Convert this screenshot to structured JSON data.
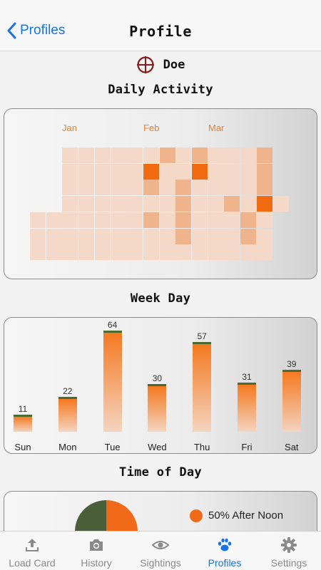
{
  "nav": {
    "back_label": "Profiles",
    "title": "Profile"
  },
  "animal": {
    "name": "Doe"
  },
  "daily": {
    "title": "Daily Activity",
    "months": [
      "Jan",
      "Feb",
      "Mar"
    ],
    "heat_rows": [
      [
        null,
        null,
        1,
        1,
        1,
        1,
        1,
        1,
        2,
        1,
        2,
        1,
        1,
        1,
        2
      ],
      [
        null,
        null,
        1,
        1,
        1,
        1,
        1,
        4,
        1,
        1,
        4,
        1,
        1,
        1,
        2
      ],
      [
        null,
        null,
        1,
        1,
        1,
        1,
        1,
        2,
        1,
        2,
        1,
        1,
        1,
        1,
        2
      ],
      [
        null,
        null,
        1,
        1,
        1,
        1,
        1,
        1,
        1,
        2,
        1,
        1,
        2,
        1,
        4,
        1
      ],
      [
        1,
        1,
        1,
        1,
        1,
        1,
        1,
        2,
        1,
        2,
        1,
        1,
        1,
        2,
        1,
        null
      ],
      [
        1,
        1,
        1,
        1,
        1,
        1,
        1,
        1,
        1,
        2,
        1,
        1,
        1,
        2,
        1,
        null
      ],
      [
        1,
        1,
        1,
        1,
        1,
        1,
        1,
        1,
        1,
        1,
        1,
        1,
        1,
        1,
        1,
        null
      ]
    ]
  },
  "weekday": {
    "title": "Week Day",
    "chart_data": {
      "type": "bar",
      "categories": [
        "Sun",
        "Mon",
        "Tue",
        "Wed",
        "Thu",
        "Fri",
        "Sat"
      ],
      "values": [
        11,
        22,
        64,
        30,
        57,
        31,
        39
      ]
    }
  },
  "timeofday": {
    "title": "Time of Day",
    "legend_label": "50% After Noon",
    "colors": {
      "after_noon": "#f06a1a",
      "before_noon": "#4a5e3a"
    }
  },
  "tabs": [
    {
      "label": "Load Card",
      "icon": "upload-icon",
      "active": false
    },
    {
      "label": "History",
      "icon": "camera-icon",
      "active": false
    },
    {
      "label": "Sightings",
      "icon": "eye-icon",
      "active": false
    },
    {
      "label": "Profiles",
      "icon": "paw-icon",
      "active": true
    },
    {
      "label": "Settings",
      "icon": "gear-icon",
      "active": false
    }
  ]
}
